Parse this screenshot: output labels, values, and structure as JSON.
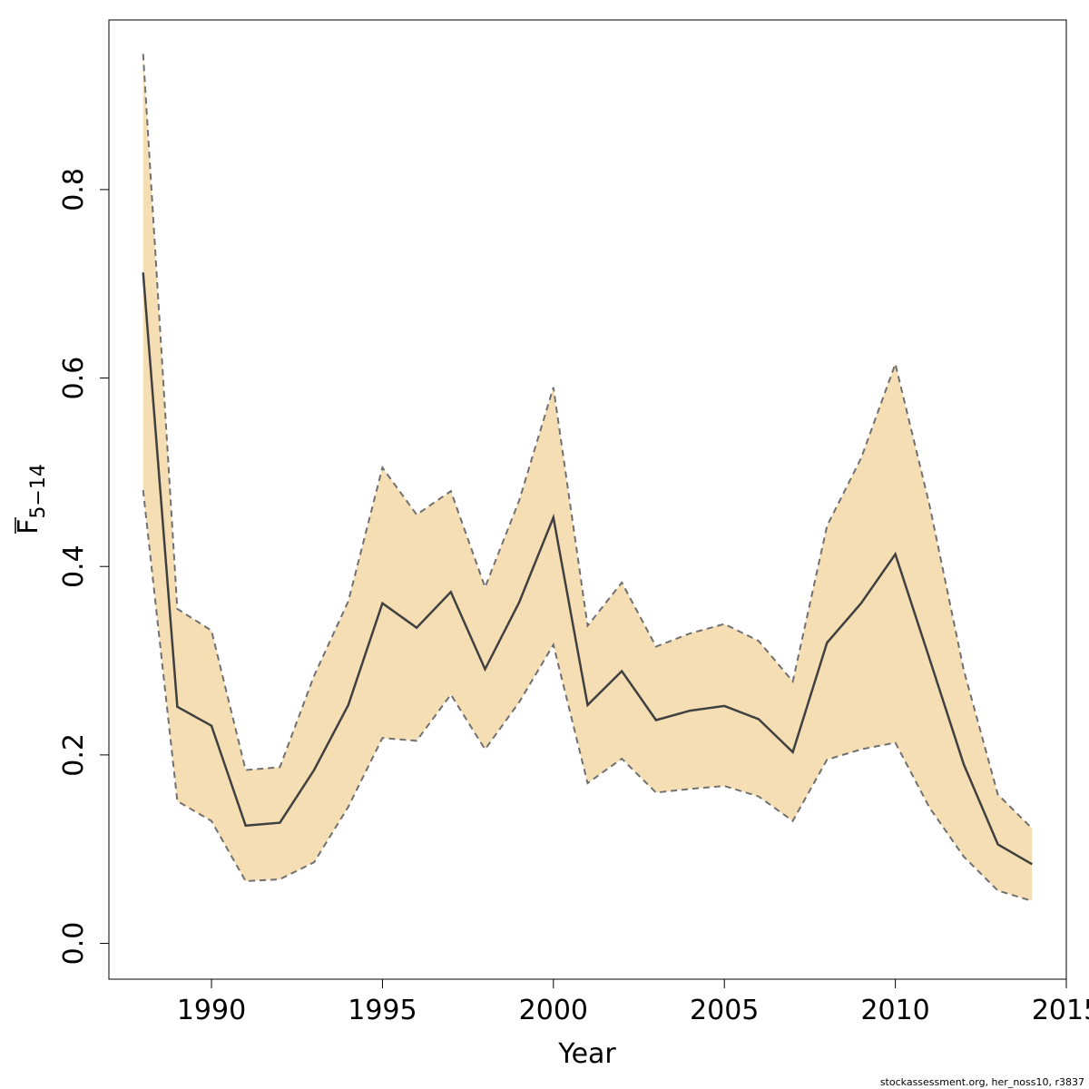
{
  "chart_data": {
    "type": "area",
    "xlabel": "Year",
    "ylabel_main": "F",
    "ylabel_sub": "5−14",
    "xlim": [
      1987,
      2015
    ],
    "ylim": [
      -0.038,
      0.98
    ],
    "x_ticks": [
      1990,
      1995,
      2000,
      2005,
      2010,
      2015
    ],
    "y_ticks": [
      0.0,
      0.2,
      0.4,
      0.6,
      0.8
    ],
    "y_tick_labels": [
      "0.0",
      "0.2",
      "0.4",
      "0.6",
      "0.8"
    ],
    "x": [
      1988,
      1989,
      1990,
      1991,
      1992,
      1993,
      1994,
      1995,
      1996,
      1997,
      1998,
      1999,
      2000,
      2001,
      2002,
      2003,
      2004,
      2005,
      2006,
      2007,
      2008,
      2009,
      2010,
      2011,
      2012,
      2013,
      2014
    ],
    "series": [
      {
        "role": "estimate",
        "values": [
          0.712,
          0.251,
          0.231,
          0.125,
          0.128,
          0.184,
          0.253,
          0.361,
          0.335,
          0.373,
          0.291,
          0.362,
          0.452,
          0.253,
          0.289,
          0.237,
          0.247,
          0.252,
          0.238,
          0.203,
          0.319,
          0.361,
          0.413,
          0.302,
          0.19,
          0.105,
          0.084
        ]
      },
      {
        "role": "upper",
        "values": [
          0.944,
          0.355,
          0.332,
          0.184,
          0.187,
          0.284,
          0.363,
          0.505,
          0.455,
          0.48,
          0.378,
          0.47,
          0.59,
          0.337,
          0.383,
          0.315,
          0.329,
          0.339,
          0.321,
          0.278,
          0.443,
          0.515,
          0.615,
          0.465,
          0.29,
          0.158,
          0.122
        ]
      },
      {
        "role": "lower",
        "values": [
          0.481,
          0.151,
          0.13,
          0.066,
          0.068,
          0.086,
          0.145,
          0.218,
          0.215,
          0.264,
          0.206,
          0.256,
          0.317,
          0.17,
          0.196,
          0.16,
          0.164,
          0.167,
          0.156,
          0.13,
          0.195,
          0.206,
          0.213,
          0.144,
          0.092,
          0.056,
          0.045
        ]
      }
    ],
    "colors": {
      "band": "#F5DEB3",
      "line": "#404040",
      "bound": "#707070"
    },
    "footer_text": "stockassessment.org, her_noss10, r3837"
  }
}
